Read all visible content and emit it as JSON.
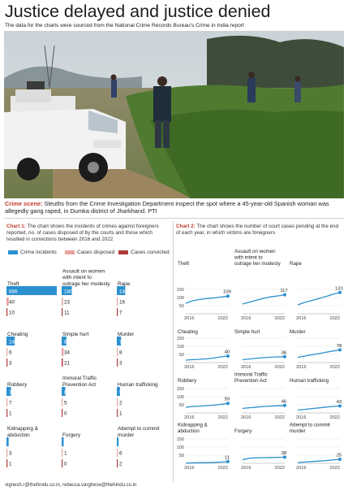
{
  "header": {
    "title": "Justice delayed and justice denied",
    "subtitle": "The data for the charts were sourced from the National Crime Records Bureau's Crime in India report"
  },
  "photo": {
    "caption_lead": "Crime scene:",
    "caption_text": " Sleuths from the Crime Investigation Department inspect the spot where a 45-year-old Spanish woman was allegedly gang raped, in Dumka district of Jharkhand. PTI"
  },
  "chart1_intro": {
    "lead": "Chart 1:",
    "text": " The chart shows the incidents of crimes against foreigners reported, no. of cases disposed of by the courts and those which resulted in convictions between 2016 and 2022"
  },
  "chart2_intro": {
    "lead": "Chart 2:",
    "text": " The chart shows the number of court cases pending at the end of each year, in which victims are foreigners"
  },
  "footer": {
    "credit": "vignesh.r@thehindu.co.in, rebecca.varghese@thehindu.co.in"
  },
  "colors": {
    "incidents": "#2a90d0",
    "disposed": "#e8a39f",
    "convicted": "#b03a3a",
    "accent": "#c0392b",
    "line": "#2a90d0"
  },
  "chart_data": [
    {
      "type": "bar",
      "legend": [
        "Crime incidents",
        "Cases disposed",
        "Cases convicted"
      ],
      "panels": [
        {
          "label": "Theft",
          "values": [
            886,
            40,
            10
          ]
        },
        {
          "label": "Assault on women with intent to outrage her modesty",
          "values": [
            180,
            23,
            11
          ]
        },
        {
          "label": "Rape",
          "values": [
            148,
            16,
            7
          ]
        },
        {
          "label": "Cheating",
          "values": [
            144,
            6,
            3
          ]
        },
        {
          "label": "Simple hurt",
          "values": [
            84,
            34,
            21
          ]
        },
        {
          "label": "Murder",
          "values": [
            75,
            8,
            3
          ]
        },
        {
          "label": "Robbery",
          "values": [
            79,
            7,
            1
          ]
        },
        {
          "label": "Immoral Traffic Prevention Act",
          "values": [
            65,
            5,
            0
          ]
        },
        {
          "label": "Human trafficking",
          "values": [
            57,
            2,
            1
          ]
        },
        {
          "label": "Kidnapping & abduction",
          "values": [
            38,
            3,
            1
          ]
        },
        {
          "label": "Forgery",
          "values": [
            35,
            1,
            0
          ]
        },
        {
          "label": "Attempt to commit murder",
          "values": [
            31,
            6,
            2
          ]
        }
      ]
    },
    {
      "type": "line",
      "x": [
        2016,
        2017,
        2018,
        2019,
        2020,
        2021,
        2022
      ],
      "x_tick_labels": [
        "2016",
        "2022"
      ],
      "y_tick_labels": [
        "0",
        "50",
        "100",
        "150"
      ],
      "ylim": [
        0,
        150
      ],
      "panels": [
        {
          "label": "Theft",
          "values": [
            65,
            80,
            88,
            94,
            97,
            103,
            109
          ],
          "end_label": "109"
        },
        {
          "label": "Assault on women with intent to outrage her modesty",
          "values": [
            60,
            72,
            84,
            95,
            104,
            110,
            117
          ],
          "end_label": "117"
        },
        {
          "label": "Rape",
          "values": [
            55,
            70,
            82,
            94,
            106,
            120,
            131
          ],
          "end_label": "131"
        },
        {
          "label": "Cheating",
          "values": [
            15,
            18,
            20,
            23,
            28,
            35,
            40
          ],
          "end_label": "40"
        },
        {
          "label": "Simple hurt",
          "values": [
            18,
            22,
            27,
            30,
            33,
            35,
            36
          ],
          "end_label": "36"
        },
        {
          "label": "Murder",
          "values": [
            32,
            40,
            48,
            55,
            63,
            71,
            78
          ],
          "end_label": "78"
        },
        {
          "label": "Robbery",
          "values": [
            35,
            40,
            42,
            45,
            48,
            53,
            59
          ],
          "end_label": "59"
        },
        {
          "label": "Immoral Traffic Prevention Act",
          "values": [
            28,
            32,
            36,
            40,
            42,
            44,
            46
          ],
          "end_label": "46"
        },
        {
          "label": "Human trafficking",
          "values": [
            18,
            22,
            27,
            31,
            36,
            40,
            43
          ],
          "end_label": "43"
        },
        {
          "label": "Kidnapping & abduction",
          "values": [
            2,
            3,
            4,
            5,
            6,
            8,
            11
          ],
          "end_label": "11"
        },
        {
          "label": "Forgery",
          "values": [
            22,
            32,
            34,
            35,
            36,
            37,
            38
          ],
          "end_label": "38"
        },
        {
          "label": "Attempt to commit murder",
          "values": [
            5,
            8,
            11,
            14,
            17,
            21,
            25
          ],
          "end_label": "25"
        }
      ]
    }
  ]
}
